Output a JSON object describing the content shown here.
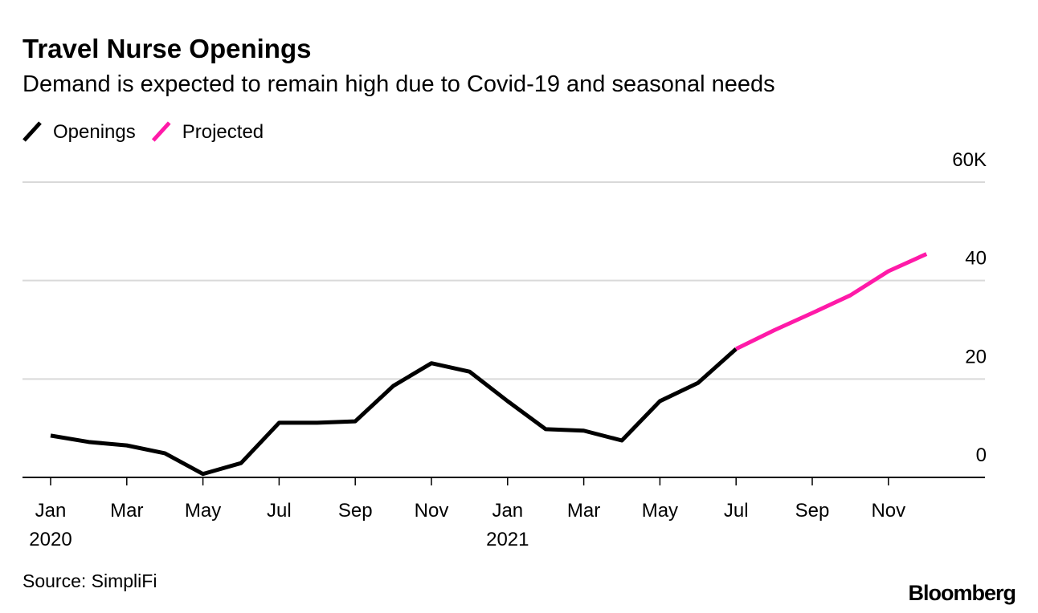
{
  "chart_data": {
    "type": "line",
    "title": "Travel Nurse Openings",
    "subtitle": "Demand is expected to remain high due to Covid-19 and seasonal needs",
    "source": "Source: SimpliFi",
    "brand": "Bloomberg",
    "categories": [
      "Jan",
      null,
      "Mar",
      null,
      "May",
      null,
      "Jul",
      null,
      "Sep",
      null,
      "Nov",
      null,
      "Jan",
      null,
      "Mar",
      null,
      "May",
      null,
      "Jul",
      null,
      "Sep",
      null,
      "Nov",
      null
    ],
    "years": [
      "2020",
      null,
      null,
      null,
      null,
      null,
      null,
      null,
      null,
      null,
      null,
      null,
      "2021",
      null,
      null,
      null,
      null,
      null,
      null,
      null,
      null,
      null,
      null,
      null
    ],
    "series": [
      {
        "name": "Openings",
        "color": "#000000",
        "values": [
          8.5,
          7.2,
          6.5,
          4.9,
          0.7,
          2.9,
          11.1,
          11.1,
          11.4,
          18.6,
          23.2,
          21.5,
          15.5,
          9.8,
          9.5,
          7.5,
          15.5,
          19.2,
          26.1,
          null,
          null,
          null,
          null,
          null
        ]
      },
      {
        "name": "Projected",
        "color": "#ff1aa8",
        "values": [
          null,
          null,
          null,
          null,
          null,
          null,
          null,
          null,
          null,
          null,
          null,
          null,
          null,
          null,
          null,
          null,
          null,
          null,
          26.1,
          29.9,
          33.4,
          37.0,
          41.9,
          45.4
        ]
      }
    ],
    "ylim": [
      0,
      60
    ],
    "yticks": [
      0,
      20,
      40,
      {
        "value": 60,
        "label": "60K"
      }
    ],
    "grid": true
  }
}
